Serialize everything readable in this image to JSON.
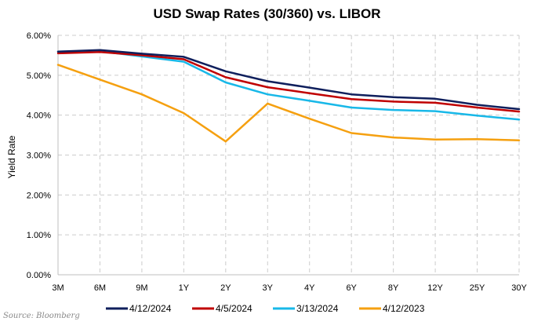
{
  "chart_data": {
    "type": "line",
    "title": "USD Swap Rates (30/360) vs. LIBOR",
    "ylabel": "Yield Rate",
    "xlabel": "",
    "categories": [
      "3M",
      "6M",
      "9M",
      "1Y",
      "2Y",
      "3Y",
      "4Y",
      "6Y",
      "8Y",
      "12Y",
      "25Y",
      "30Y"
    ],
    "y_ticks": [
      "0.00%",
      "1.00%",
      "2.00%",
      "3.00%",
      "4.00%",
      "5.00%",
      "6.00%"
    ],
    "ylim": [
      0,
      6
    ],
    "grid": true,
    "legend_position": "bottom",
    "series": [
      {
        "name": "4/12/2024",
        "color": "#0f1f5c",
        "values": [
          5.59,
          5.63,
          5.54,
          5.46,
          5.1,
          4.85,
          4.69,
          4.52,
          4.45,
          4.41,
          4.26,
          4.15
        ]
      },
      {
        "name": "4/5/2024",
        "color": "#c00000",
        "values": [
          5.55,
          5.58,
          5.5,
          5.4,
          4.95,
          4.7,
          4.55,
          4.4,
          4.34,
          4.31,
          4.19,
          4.09
        ]
      },
      {
        "name": "3/13/2024",
        "color": "#18b8e8",
        "values": [
          5.59,
          5.6,
          5.47,
          5.34,
          4.82,
          4.52,
          4.36,
          4.19,
          4.13,
          4.1,
          3.99,
          3.89
        ]
      },
      {
        "name": "4/12/2023",
        "color": "#f5a010",
        "values": [
          5.26,
          4.89,
          4.52,
          4.05,
          3.34,
          4.29,
          3.91,
          3.55,
          3.44,
          3.39,
          3.4,
          3.37
        ]
      }
    ]
  },
  "source": "Source: Bloomberg"
}
